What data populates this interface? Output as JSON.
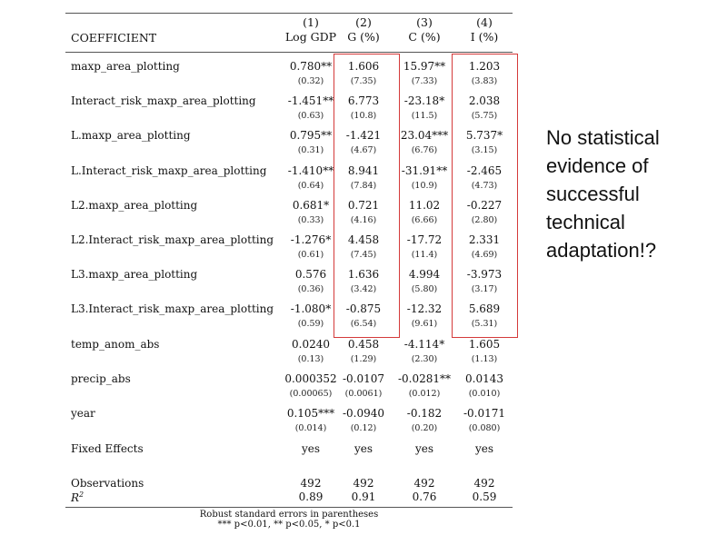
{
  "table": {
    "coef_header": "COEFFICIENT",
    "columns": [
      {
        "num": "(1)",
        "name": "Log GDP"
      },
      {
        "num": "(2)",
        "name": "G (%)"
      },
      {
        "num": "(3)",
        "name": "C (%)"
      },
      {
        "num": "(4)",
        "name": "I (%)"
      }
    ],
    "rows": [
      {
        "name": "maxp_area_plotting",
        "values": [
          "0.780**",
          "1.606",
          "15.97**",
          "1.203"
        ],
        "se": [
          "(0.32)",
          "(7.35)",
          "(7.33)",
          "(3.83)"
        ]
      },
      {
        "name": "Interact_risk_maxp_area_plotting",
        "values": [
          "-1.451**",
          "6.773",
          "-23.18*",
          "2.038"
        ],
        "se": [
          "(0.63)",
          "(10.8)",
          "(11.5)",
          "(5.75)"
        ]
      },
      {
        "name": "L.maxp_area_plotting",
        "values": [
          "0.795**",
          "-1.421",
          "23.04***",
          "5.737*"
        ],
        "se": [
          "(0.31)",
          "(4.67)",
          "(6.76)",
          "(3.15)"
        ]
      },
      {
        "name": "L.Interact_risk_maxp_area_plotting",
        "values": [
          "-1.410**",
          "8.941",
          "-31.91**",
          "-2.465"
        ],
        "se": [
          "(0.64)",
          "(7.84)",
          "(10.9)",
          "(4.73)"
        ]
      },
      {
        "name": "L2.maxp_area_plotting",
        "values": [
          "0.681*",
          "0.721",
          "11.02",
          "-0.227"
        ],
        "se": [
          "(0.33)",
          "(4.16)",
          "(6.66)",
          "(2.80)"
        ]
      },
      {
        "name": "L2.Interact_risk_maxp_area_plotting",
        "values": [
          "-1.276*",
          "4.458",
          "-17.72",
          "2.331"
        ],
        "se": [
          "(0.61)",
          "(7.45)",
          "(11.4)",
          "(4.69)"
        ]
      },
      {
        "name": "L3.maxp_area_plotting",
        "values": [
          "0.576",
          "1.636",
          "4.994",
          "-3.973"
        ],
        "se": [
          "(0.36)",
          "(3.42)",
          "(5.80)",
          "(3.17)"
        ]
      },
      {
        "name": "L3.Interact_risk_maxp_area_plotting",
        "values": [
          "-1.080*",
          "-0.875",
          "-12.32",
          "5.689"
        ],
        "se": [
          "(0.59)",
          "(6.54)",
          "(9.61)",
          "(5.31)"
        ]
      },
      {
        "name": "temp_anom_abs",
        "values": [
          "0.0240",
          "0.458",
          "-4.114*",
          "1.605"
        ],
        "se": [
          "(0.13)",
          "(1.29)",
          "(2.30)",
          "(1.13)"
        ]
      },
      {
        "name": "precip_abs",
        "values": [
          "0.000352",
          "-0.0107",
          "-0.0281**",
          "0.0143"
        ],
        "se": [
          "(0.00065)",
          "(0.0061)",
          "(0.012)",
          "(0.010)"
        ]
      },
      {
        "name": "year",
        "values": [
          "0.105***",
          "-0.0940",
          "-0.182",
          "-0.0171"
        ],
        "se": [
          "(0.014)",
          "(0.12)",
          "(0.20)",
          "(0.080)"
        ]
      }
    ],
    "fixed_effects": {
      "name": "Fixed Effects",
      "values": [
        "yes",
        "yes",
        "yes",
        "yes"
      ]
    },
    "observations": {
      "name": "Observations",
      "values": [
        "492",
        "492",
        "492",
        "492"
      ]
    },
    "r2": {
      "name": "R",
      "sup": "2",
      "values": [
        "0.89",
        "0.91",
        "0.76",
        "0.59"
      ]
    },
    "notes": [
      "Robust standard errors in parentheses",
      "*** p<0.01, ** p<0.05, * p<0.1"
    ]
  },
  "side_note": "No statistical evidence of successful technical adaptation!?",
  "highlight_color": "#d43a3a"
}
